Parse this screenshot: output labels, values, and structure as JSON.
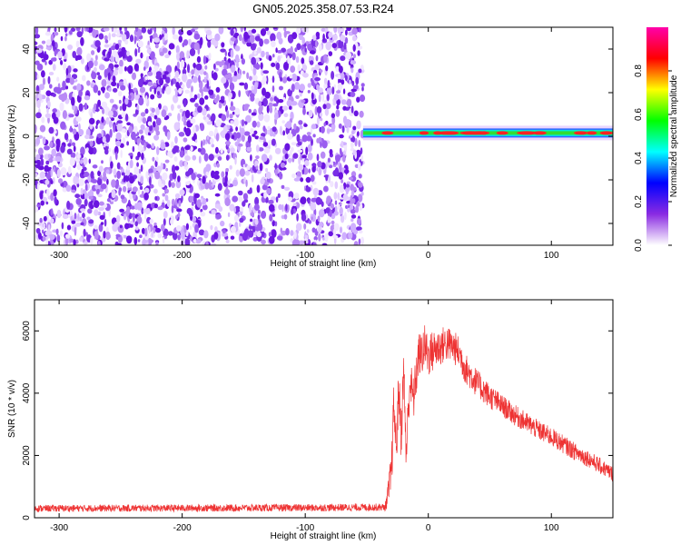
{
  "title": "GN05.2025.358.07.53.R24",
  "chart_data": [
    {
      "type": "heatmap",
      "name": "spectrogram",
      "xlabel": "Height of straight line (km)",
      "ylabel": "Frequency (Hz)",
      "xlim": [
        -320,
        150
      ],
      "ylim": [
        -50,
        50
      ],
      "xticks": [
        -300,
        -200,
        -100,
        0,
        100
      ],
      "yticks": [
        -40,
        -20,
        0,
        20,
        40
      ],
      "noise_region_x": [
        -320,
        -53
      ],
      "signal_region_x": [
        -53,
        150
      ],
      "signal_frequency_hz": 1.5,
      "colorbar": {
        "label": "Normalized spectral amplitude",
        "ticks": [
          0.0,
          0.2,
          0.4,
          0.6,
          0.8
        ],
        "range": [
          0,
          1
        ],
        "colors": [
          "#ffffff",
          "#8a2be2",
          "#0000ff",
          "#00ffff",
          "#00ff00",
          "#ffff00",
          "#ff0000",
          "#ff00aa"
        ]
      }
    },
    {
      "type": "line",
      "name": "snr",
      "xlabel": "Height of straight line (km)",
      "ylabel": "SNR (10 * v/v)",
      "xlim": [
        -320,
        150
      ],
      "ylim": [
        0,
        7000
      ],
      "xticks": [
        -300,
        -200,
        -100,
        0,
        100
      ],
      "yticks": [
        0,
        2000,
        4000,
        6000
      ],
      "color": "#ee3333",
      "envelope": {
        "x": [
          -320,
          -100,
          -35,
          -33,
          -30,
          -28,
          -26,
          -24,
          -22,
          -20,
          -18,
          -15,
          -12,
          -10,
          -8,
          -5,
          -3,
          0,
          5,
          10,
          15,
          20,
          25,
          30,
          40,
          50,
          60,
          70,
          80,
          90,
          100,
          110,
          120,
          130,
          140,
          150
        ],
        "y": [
          300,
          320,
          340,
          700,
          1400,
          3600,
          2200,
          4200,
          2600,
          4800,
          2000,
          4400,
          3800,
          4500,
          5200,
          5300,
          5500,
          5200,
          5400,
          5500,
          5600,
          5500,
          5300,
          4800,
          4300,
          3900,
          3600,
          3300,
          3050,
          2800,
          2600,
          2350,
          2100,
          1900,
          1650,
          1400
        ]
      },
      "noise_amplitude": {
        "x": [
          -320,
          -35,
          -30,
          0,
          20,
          60,
          150
        ],
        "y": [
          110,
          120,
          800,
          700,
          550,
          350,
          250
        ]
      }
    }
  ]
}
